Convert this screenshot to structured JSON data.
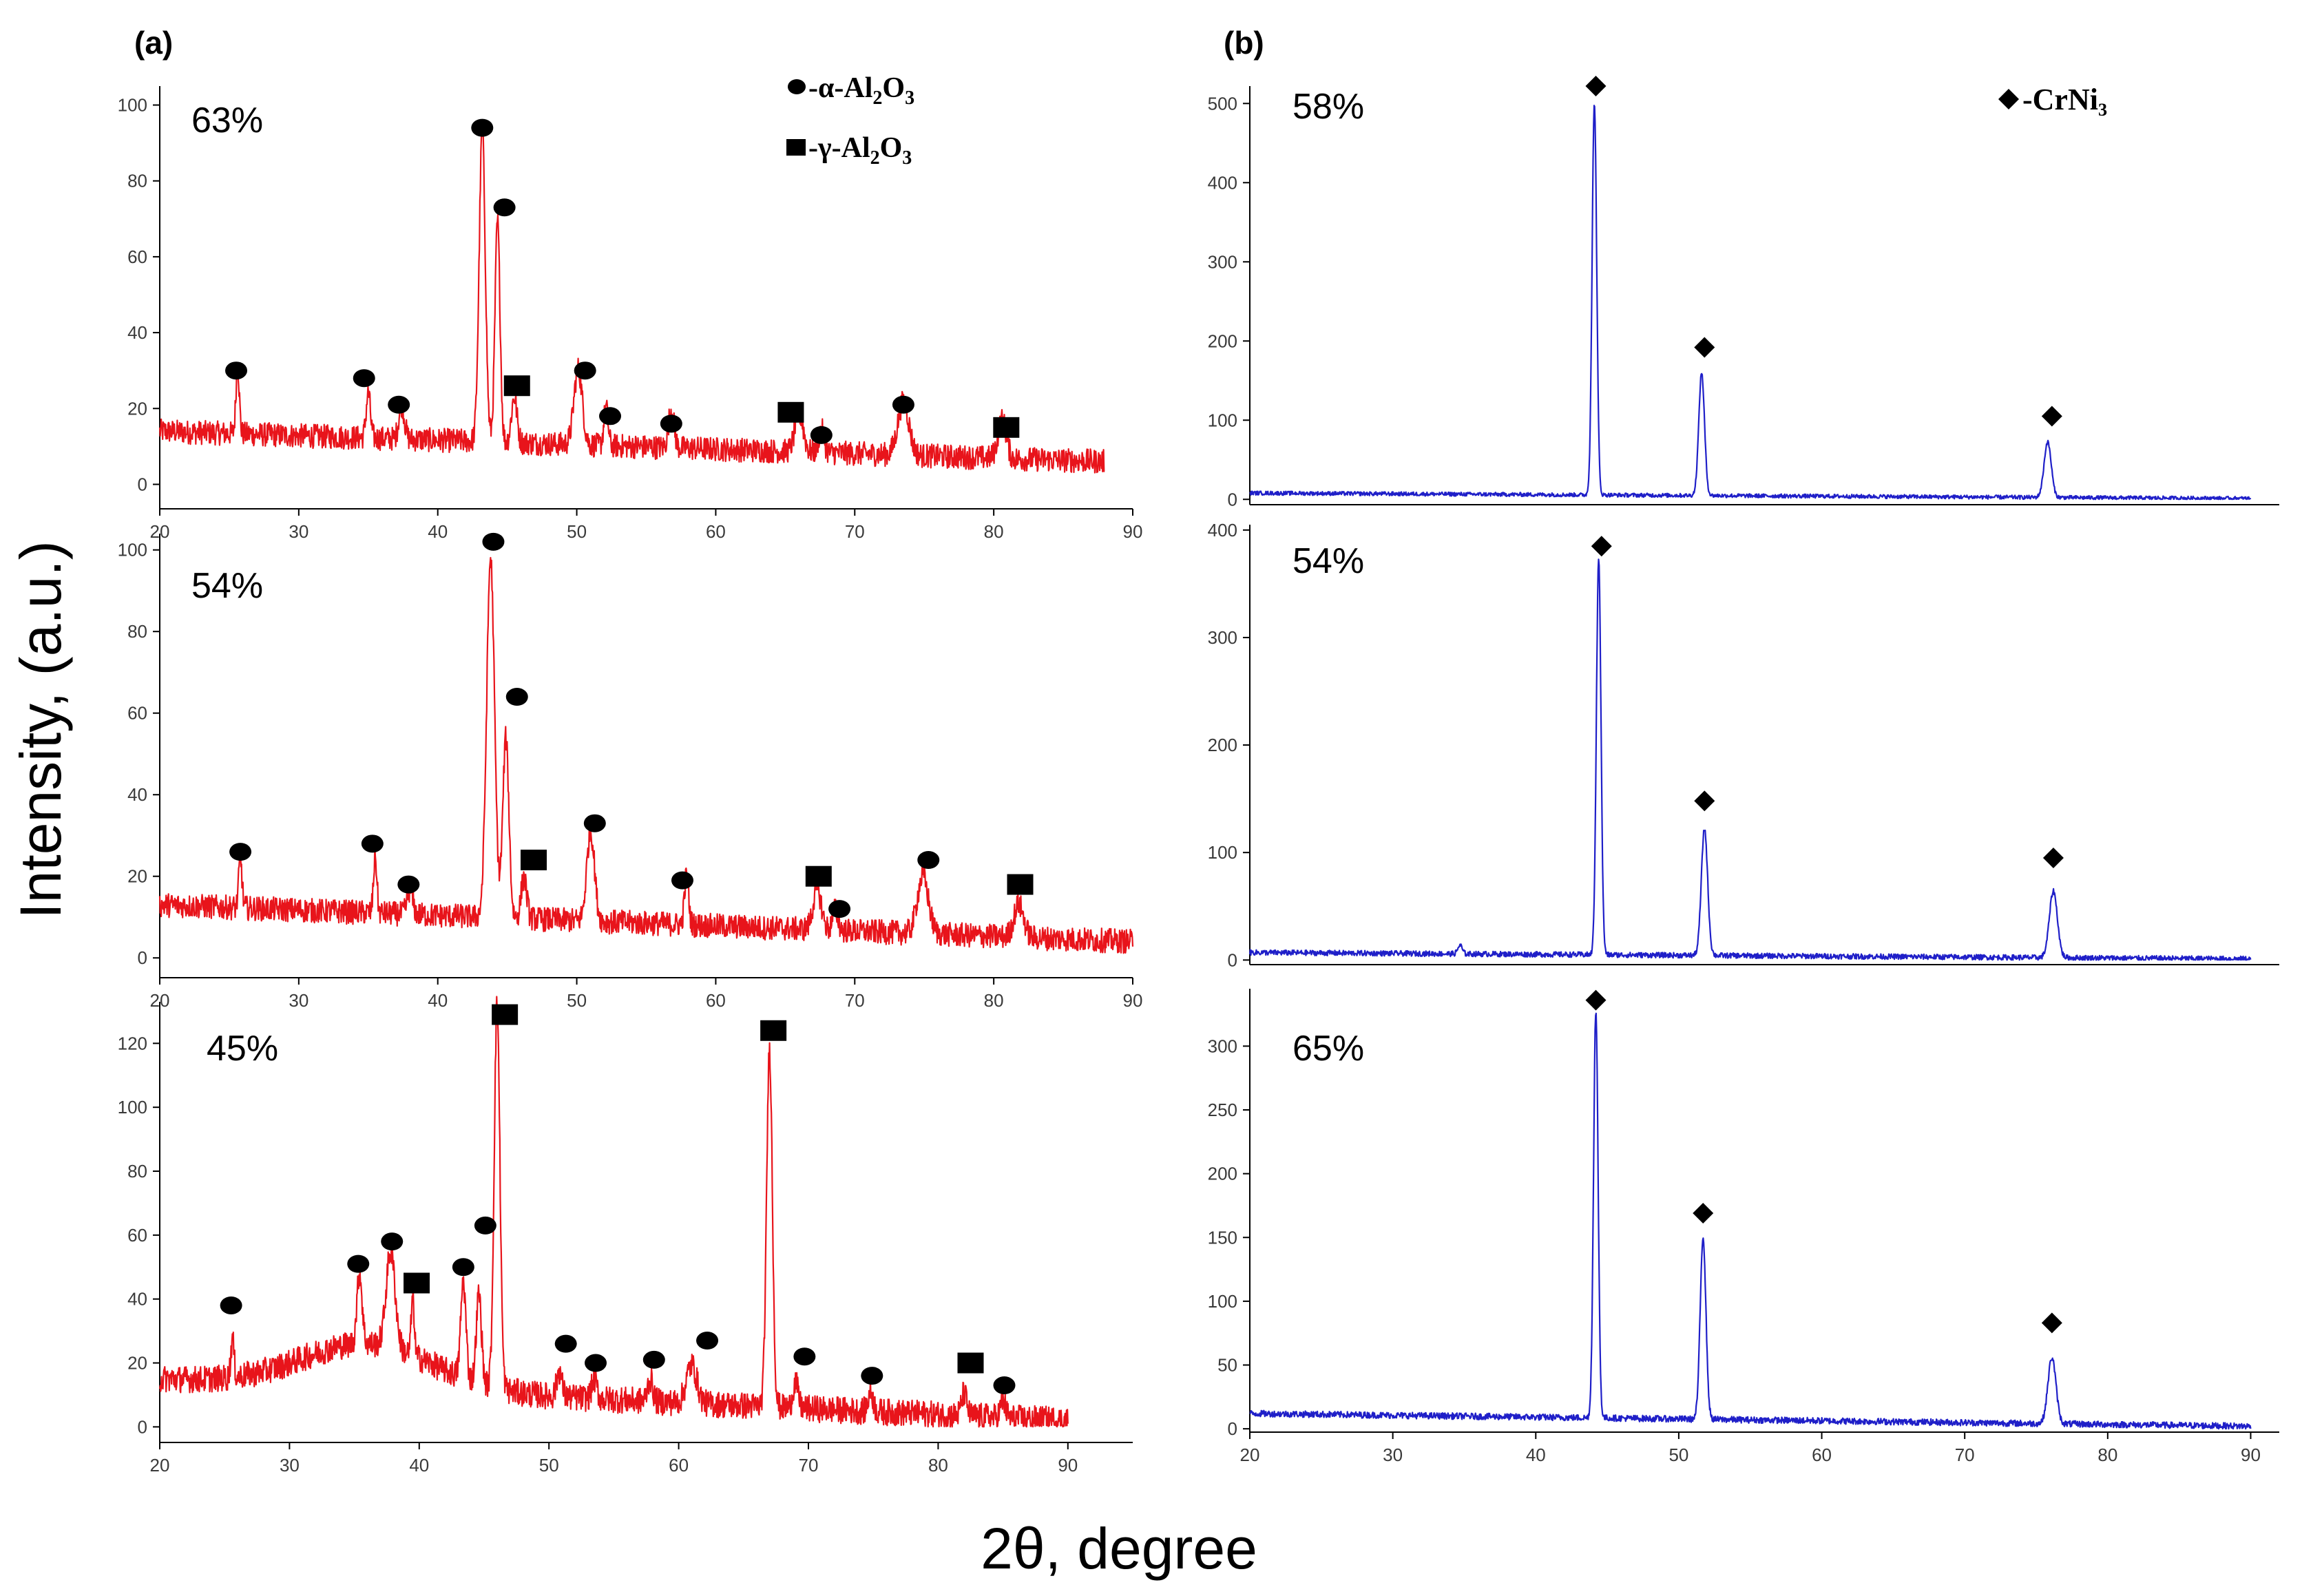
{
  "figure": {
    "panel_a_label": "(a)",
    "panel_b_label": "(b)",
    "y_axis_label": "Intensity, (a.u.)",
    "x_axis_label": "2θ, degree"
  },
  "legend_a": [
    {
      "marker": "circle",
      "prefix": "-α-",
      "formula": [
        "Al",
        "2",
        "O",
        "3"
      ]
    },
    {
      "marker": "square",
      "prefix": "-γ-",
      "formula": [
        "Al",
        "2",
        "O",
        "3"
      ]
    }
  ],
  "legend_b": {
    "marker": "diamond",
    "text": "-CrNi₃"
  },
  "colors": {
    "panel_a_series": "#e8141b",
    "panel_b_series": "#1f1fc8",
    "axis": "#000000",
    "markers": "#000000"
  },
  "chart_data": [
    {
      "type": "line",
      "panel": "a",
      "title": "63%",
      "xlabel": "2θ, degree",
      "ylabel": "Intensity, (a.u.)",
      "xlim": [
        20,
        90
      ],
      "ylim": [
        -3,
        105
      ],
      "data_xmax": 88,
      "x_ticks": [
        20,
        30,
        40,
        50,
        60,
        70,
        80,
        90
      ],
      "y_ticks": [
        0,
        20,
        40,
        60,
        80,
        100
      ],
      "series": [
        {
          "name": "63%",
          "baseline": 14,
          "baseline_end": 6,
          "noise": 3.2,
          "peaks": [
            [
              25.6,
              18,
              0.12
            ],
            [
              35.0,
              12,
              0.15
            ],
            [
              37.4,
              9,
              0.2
            ],
            [
              43.2,
              82,
              0.22
            ],
            [
              44.3,
              58,
              0.18
            ],
            [
              45.5,
              12,
              0.2
            ],
            [
              50.1,
              20,
              0.3
            ],
            [
              52.1,
              10,
              0.15
            ],
            [
              56.8,
              10,
              0.2
            ],
            [
              66.0,
              10,
              0.3
            ],
            [
              67.6,
              6,
              0.2
            ],
            [
              73.5,
              14,
              0.4
            ],
            [
              80.6,
              10,
              0.3
            ]
          ]
        }
      ],
      "markers": [
        {
          "type": "circle",
          "x": 25.5,
          "y": 30
        },
        {
          "type": "circle",
          "x": 34.7,
          "y": 28
        },
        {
          "type": "circle",
          "x": 37.2,
          "y": 21
        },
        {
          "type": "circle",
          "x": 43.2,
          "y": 94
        },
        {
          "type": "circle",
          "x": 44.8,
          "y": 73
        },
        {
          "type": "square",
          "x": 45.7,
          "y": 26
        },
        {
          "type": "circle",
          "x": 50.6,
          "y": 30
        },
        {
          "type": "circle",
          "x": 52.4,
          "y": 18
        },
        {
          "type": "circle",
          "x": 56.8,
          "y": 16
        },
        {
          "type": "square",
          "x": 65.4,
          "y": 19
        },
        {
          "type": "circle",
          "x": 67.6,
          "y": 13
        },
        {
          "type": "circle",
          "x": 73.5,
          "y": 21
        },
        {
          "type": "square",
          "x": 80.9,
          "y": 15
        }
      ]
    },
    {
      "type": "line",
      "panel": "a",
      "title": "54%",
      "xlabel": "2θ, degree",
      "ylabel": "Intensity, (a.u.)",
      "xlim": [
        20,
        90
      ],
      "ylim": [
        -3,
        104
      ],
      "data_xmax": 90,
      "x_ticks": [
        20,
        30,
        40,
        50,
        60,
        70,
        80,
        90
      ],
      "y_ticks": [
        0,
        20,
        40,
        60,
        80,
        100
      ],
      "series": [
        {
          "name": "54%",
          "baseline": 13,
          "baseline_end": 4,
          "noise": 3.0,
          "peaks": [
            [
              25.8,
              12,
              0.12
            ],
            [
              35.5,
              14,
              0.12
            ],
            [
              38.0,
              6,
              0.2
            ],
            [
              43.8,
              88,
              0.28
            ],
            [
              44.9,
              44,
              0.22
            ],
            [
              46.2,
              10,
              0.2
            ],
            [
              51.0,
              22,
              0.28
            ],
            [
              57.9,
              12,
              0.15
            ],
            [
              67.3,
              10,
              0.3
            ],
            [
              68.6,
              5,
              0.2
            ],
            [
              74.9,
              14,
              0.4
            ],
            [
              81.8,
              8,
              0.35
            ]
          ]
        }
      ],
      "markers": [
        {
          "type": "circle",
          "x": 25.8,
          "y": 26
        },
        {
          "type": "circle",
          "x": 35.3,
          "y": 28
        },
        {
          "type": "circle",
          "x": 37.9,
          "y": 18
        },
        {
          "type": "circle",
          "x": 44.0,
          "y": 102
        },
        {
          "type": "circle",
          "x": 45.7,
          "y": 64
        },
        {
          "type": "square",
          "x": 46.9,
          "y": 24
        },
        {
          "type": "circle",
          "x": 51.3,
          "y": 33
        },
        {
          "type": "circle",
          "x": 57.6,
          "y": 19
        },
        {
          "type": "square",
          "x": 67.4,
          "y": 20
        },
        {
          "type": "circle",
          "x": 68.9,
          "y": 12
        },
        {
          "type": "circle",
          "x": 75.3,
          "y": 24
        },
        {
          "type": "square",
          "x": 81.9,
          "y": 18
        }
      ]
    },
    {
      "type": "line",
      "panel": "a",
      "title": "45%",
      "xlabel": "2θ, degree",
      "ylabel": "Intensity, (a.u.)",
      "xlim": [
        20,
        95
      ],
      "ylim": [
        -1,
        133
      ],
      "data_xmax": 90,
      "x_ticks": [
        20,
        30,
        40,
        50,
        60,
        70,
        80,
        90
      ],
      "y_ticks": [
        0,
        20,
        40,
        60,
        80,
        100,
        120
      ],
      "series": [
        {
          "name": "45%",
          "baseline": 15,
          "baseline_end": 2,
          "noise": 4.2,
          "hump": [
            36,
            14,
            5
          ],
          "peaks": [
            [
              25.6,
              12,
              0.12
            ],
            [
              35.4,
              22,
              0.2
            ],
            [
              37.8,
              30,
              0.35
            ],
            [
              39.5,
              18,
              0.12
            ],
            [
              43.4,
              30,
              0.2
            ],
            [
              44.6,
              28,
              0.2
            ],
            [
              46.0,
              120,
              0.22
            ],
            [
              50.8,
              8,
              0.2
            ],
            [
              53.5,
              6,
              0.2
            ],
            [
              57.8,
              7,
              0.2
            ],
            [
              61.0,
              12,
              0.4
            ],
            [
              67.0,
              112,
              0.22
            ],
            [
              69.0,
              8,
              0.2
            ],
            [
              74.8,
              6,
              0.2
            ],
            [
              82.0,
              7,
              0.2
            ],
            [
              85.0,
              5,
              0.2
            ]
          ]
        }
      ],
      "markers": [
        {
          "type": "circle",
          "x": 25.5,
          "y": 38
        },
        {
          "type": "circle",
          "x": 35.3,
          "y": 51
        },
        {
          "type": "circle",
          "x": 37.9,
          "y": 58
        },
        {
          "type": "square",
          "x": 39.8,
          "y": 45
        },
        {
          "type": "circle",
          "x": 43.4,
          "y": 50
        },
        {
          "type": "circle",
          "x": 45.1,
          "y": 63
        },
        {
          "type": "square",
          "x": 46.6,
          "y": 129
        },
        {
          "type": "circle",
          "x": 51.3,
          "y": 26
        },
        {
          "type": "circle",
          "x": 53.6,
          "y": 20
        },
        {
          "type": "circle",
          "x": 58.1,
          "y": 21
        },
        {
          "type": "circle",
          "x": 62.2,
          "y": 27
        },
        {
          "type": "square",
          "x": 67.3,
          "y": 124
        },
        {
          "type": "circle",
          "x": 69.7,
          "y": 22
        },
        {
          "type": "circle",
          "x": 74.9,
          "y": 16
        },
        {
          "type": "square",
          "x": 82.5,
          "y": 20
        },
        {
          "type": "circle",
          "x": 85.1,
          "y": 13
        }
      ]
    },
    {
      "type": "line",
      "panel": "b",
      "title": "58%",
      "xlabel": "2θ, degree",
      "ylabel": "Intensity, (a.u.)",
      "xlim": [
        20,
        92
      ],
      "ylim": [
        -5,
        522
      ],
      "data_xmax": 90,
      "x_ticks": [],
      "y_ticks": [
        0,
        100,
        200,
        300,
        400,
        500
      ],
      "series": [
        {
          "name": "58%",
          "baseline": 8,
          "baseline_end": 1,
          "noise": 2.5,
          "peaks": [
            [
              44.1,
              495,
              0.16
            ],
            [
              51.6,
              155,
              0.2
            ],
            [
              75.8,
              70,
              0.25
            ]
          ]
        }
      ],
      "markers": [
        {
          "type": "diamond",
          "x": 44.2,
          "y": 522
        },
        {
          "type": "diamond",
          "x": 51.8,
          "y": 192
        },
        {
          "type": "diamond",
          "x": 76.1,
          "y": 105
        }
      ]
    },
    {
      "type": "line",
      "panel": "b",
      "title": "54%",
      "xlabel": "2θ, degree",
      "ylabel": "Intensity, (a.u.)",
      "xlim": [
        20,
        92
      ],
      "ylim": [
        -3,
        405
      ],
      "data_xmax": 90,
      "x_ticks": [],
      "y_ticks": [
        0,
        100,
        200,
        300,
        400
      ],
      "series": [
        {
          "name": "54%",
          "baseline": 7,
          "baseline_end": 1,
          "noise": 2.5,
          "peaks": [
            [
              34.7,
              8,
              0.15
            ],
            [
              44.4,
              370,
              0.16
            ],
            [
              51.8,
              118,
              0.22
            ],
            [
              76.2,
              62,
              0.28
            ]
          ]
        }
      ],
      "markers": [
        {
          "type": "diamond",
          "x": 44.6,
          "y": 385
        },
        {
          "type": "diamond",
          "x": 51.8,
          "y": 148
        },
        {
          "type": "diamond",
          "x": 76.2,
          "y": 95
        }
      ]
    },
    {
      "type": "line",
      "panel": "b",
      "title": "65%",
      "xlabel": "2θ, degree",
      "ylabel": "Intensity, (a.u.)",
      "xlim": [
        20,
        92
      ],
      "ylim": [
        -1,
        345
      ],
      "data_xmax": 90,
      "x_ticks": [
        20,
        30,
        40,
        50,
        60,
        70,
        80,
        90
      ],
      "y_ticks": [
        0,
        50,
        100,
        150,
        200,
        250,
        300
      ],
      "series": [
        {
          "name": "65%",
          "baseline": 12,
          "baseline_end": 2,
          "noise": 2.5,
          "peaks": [
            [
              44.2,
              318,
              0.16
            ],
            [
              51.7,
              143,
              0.2
            ],
            [
              76.1,
              52,
              0.28
            ]
          ]
        }
      ],
      "markers": [
        {
          "type": "diamond",
          "x": 44.2,
          "y": 336
        },
        {
          "type": "diamond",
          "x": 51.7,
          "y": 169
        },
        {
          "type": "diamond",
          "x": 76.1,
          "y": 83
        }
      ]
    }
  ]
}
